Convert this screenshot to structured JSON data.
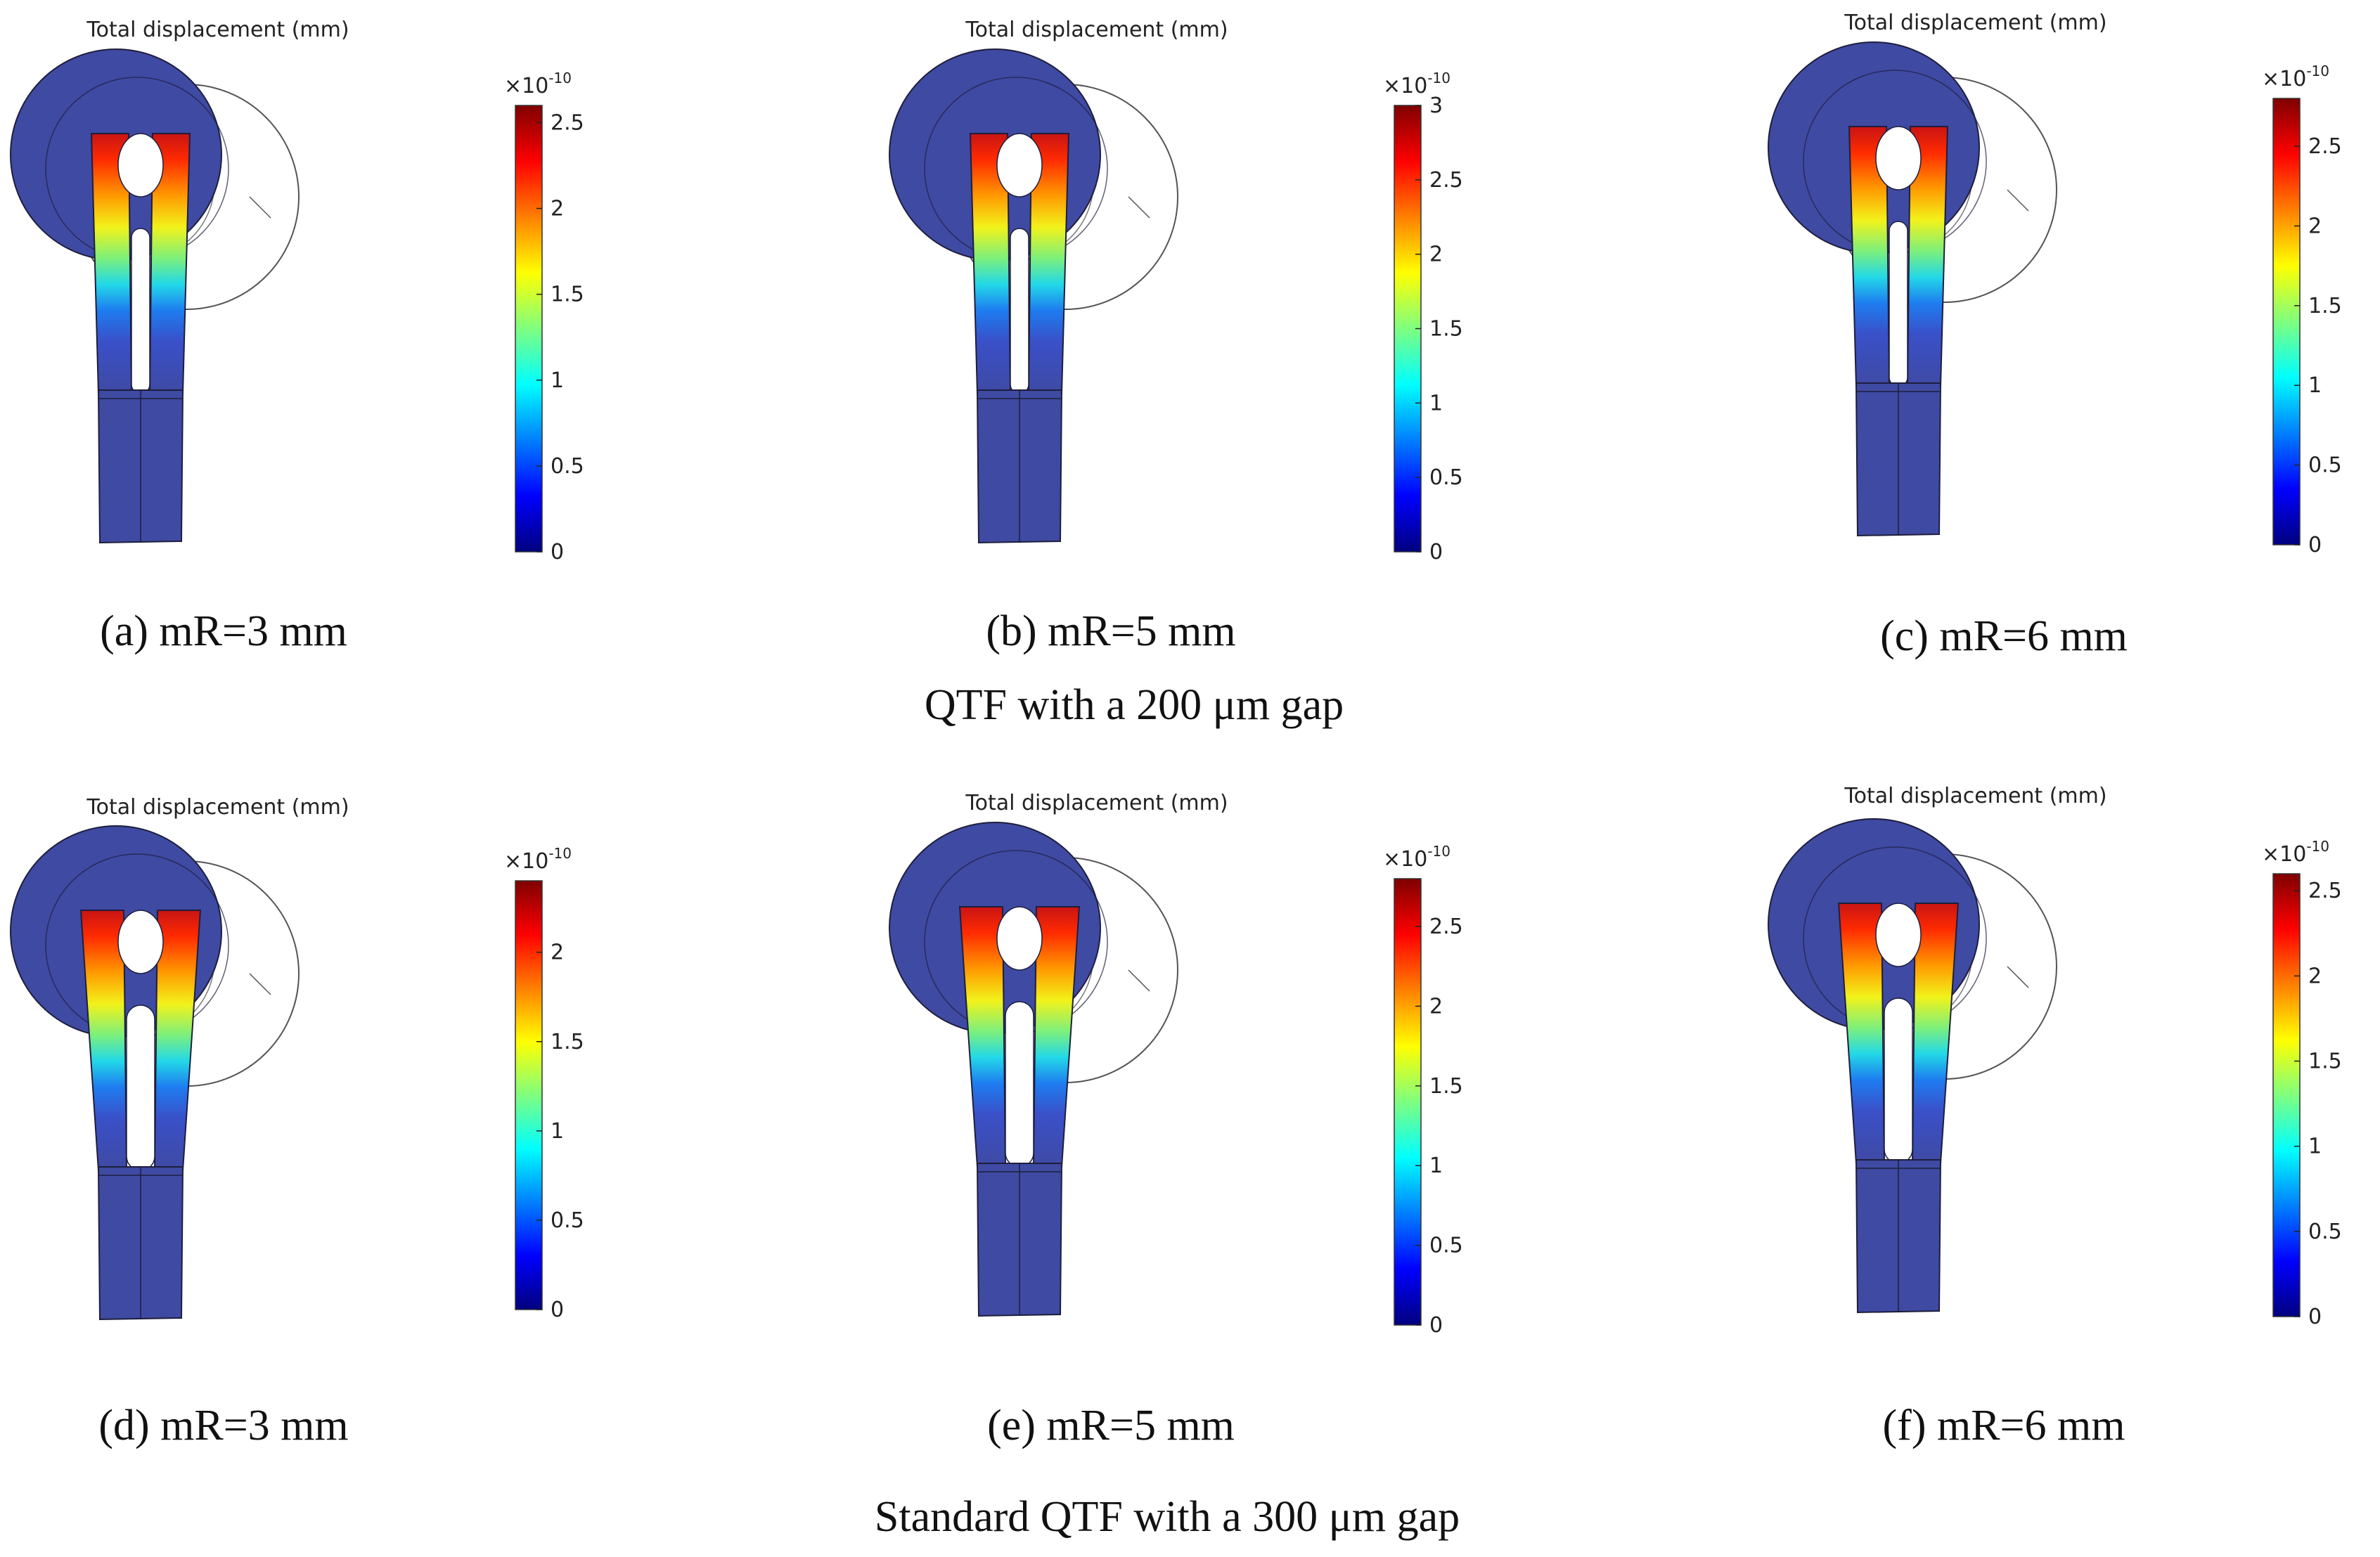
{
  "figure": {
    "group_captions": [
      "QTF with a 200 μm gap",
      "Standard QTF with a 300 μm gap"
    ],
    "panels": [
      {
        "id": "a",
        "group": 0,
        "title": "Total displacement (mm)",
        "caption": "(a) mR=3 mm",
        "colorbar": {
          "exponent_base": "×10",
          "exponent_power": "-10",
          "min": 0,
          "max": 2.6,
          "ticks": [
            "0",
            "0.5",
            "1",
            "1.5",
            "2",
            "2.5"
          ],
          "tick_values": [
            0,
            0.5,
            1,
            1.5,
            2,
            2.5
          ]
        },
        "prong_gap": "narrow"
      },
      {
        "id": "b",
        "group": 0,
        "title": "Total displacement (mm)",
        "caption": "(b) mR=5 mm",
        "colorbar": {
          "exponent_base": "×10",
          "exponent_power": "-10",
          "min": 0,
          "max": 3.0,
          "ticks": [
            "0",
            "0.5",
            "1",
            "1.5",
            "2",
            "2.5",
            "3"
          ],
          "tick_values": [
            0,
            0.5,
            1,
            1.5,
            2,
            2.5,
            3
          ]
        },
        "prong_gap": "narrow"
      },
      {
        "id": "c",
        "group": 0,
        "title": "Total displacement (mm)",
        "caption": "(c) mR=6 mm",
        "colorbar": {
          "exponent_base": "×10",
          "exponent_power": "-10",
          "min": 0,
          "max": 2.8,
          "ticks": [
            "0",
            "0.5",
            "1",
            "1.5",
            "2",
            "2.5"
          ],
          "tick_values": [
            0,
            0.5,
            1,
            1.5,
            2,
            2.5
          ]
        },
        "prong_gap": "narrow"
      },
      {
        "id": "d",
        "group": 1,
        "title": "Total displacement (mm)",
        "caption": "(d) mR=3 mm",
        "colorbar": {
          "exponent_base": "×10",
          "exponent_power": "-10",
          "min": 0,
          "max": 2.4,
          "ticks": [
            "0",
            "0.5",
            "1",
            "1.5",
            "2"
          ],
          "tick_values": [
            0,
            0.5,
            1,
            1.5,
            2
          ]
        },
        "prong_gap": "wide"
      },
      {
        "id": "e",
        "group": 1,
        "title": "Total displacement (mm)",
        "caption": "(e) mR=5 mm",
        "colorbar": {
          "exponent_base": "×10",
          "exponent_power": "-10",
          "min": 0,
          "max": 2.8,
          "ticks": [
            "0",
            "0.5",
            "1",
            "1.5",
            "2",
            "2.5"
          ],
          "tick_values": [
            0,
            0.5,
            1,
            1.5,
            2,
            2.5
          ]
        },
        "prong_gap": "wide"
      },
      {
        "id": "f",
        "group": 1,
        "title": "Total displacement (mm)",
        "caption": "(f) mR=6 mm",
        "colorbar": {
          "exponent_base": "×10",
          "exponent_power": "-10",
          "min": 0,
          "max": 2.6,
          "ticks": [
            "0",
            "0.5",
            "1",
            "1.5",
            "2",
            "2.5"
          ],
          "tick_values": [
            0,
            0.5,
            1,
            1.5,
            2,
            2.5
          ]
        },
        "prong_gap": "wide"
      }
    ],
    "colormap": [
      "#00007f",
      "#0000ff",
      "#007fff",
      "#00ffff",
      "#7fff7f",
      "#ffff00",
      "#ff7f00",
      "#ff0000",
      "#7f0000"
    ],
    "body_color": "#3f4aa3",
    "outline_color": "#1e1e3c"
  }
}
